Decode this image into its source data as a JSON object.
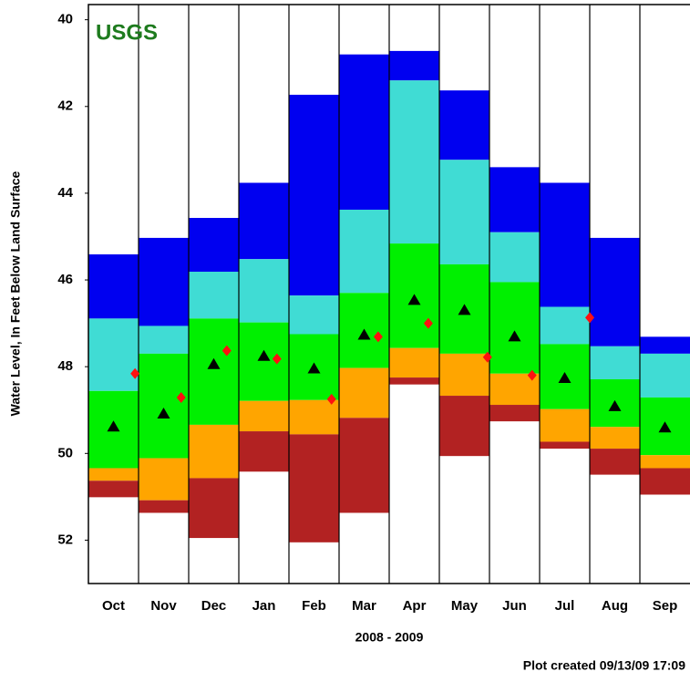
{
  "chart_data": {
    "type": "percentile-bands",
    "logo": "USGS",
    "y_label": "Water Level, In Feet Below Land Surface",
    "x_label": "2008 - 2009",
    "footnote": "Plot created 09/13/09 17:09",
    "categories": [
      "Oct",
      "Nov",
      "Dec",
      "Jan",
      "Feb",
      "Mar",
      "Apr",
      "May",
      "Jun",
      "Jul",
      "Aug",
      "Sep"
    ],
    "ylim": [
      53,
      39.65
    ],
    "yticks": [
      40,
      42,
      44,
      46,
      48,
      50,
      52
    ],
    "band_colors": [
      "#0000f0",
      "#40dcd4",
      "#00f000",
      "#ffa500",
      "#b22222"
    ],
    "levels": [
      [
        45.41,
        45.03,
        44.57,
        43.76,
        41.73,
        40.8,
        40.72,
        41.63,
        43.4,
        43.76,
        45.03,
        47.31
      ],
      [
        46.89,
        47.06,
        45.81,
        45.52,
        46.36,
        44.38,
        41.4,
        43.23,
        44.9,
        46.62,
        47.53,
        47.7
      ],
      [
        48.56,
        47.7,
        46.89,
        46.98,
        47.25,
        46.3,
        45.16,
        45.64,
        46.05,
        47.48,
        48.29,
        48.71
      ],
      [
        50.34,
        50.11,
        49.34,
        48.79,
        48.77,
        48.03,
        47.57,
        47.7,
        48.16,
        48.98,
        49.39,
        50.04
      ],
      [
        50.63,
        51.08,
        50.57,
        49.49,
        49.56,
        49.18,
        48.25,
        48.67,
        48.88,
        49.73,
        49.89,
        50.34
      ],
      [
        51.01,
        51.37,
        51.95,
        50.42,
        52.05,
        51.37,
        48.41,
        50.06,
        49.26,
        49.89,
        50.49,
        50.95
      ]
    ],
    "median": {
      "color": "#000000",
      "values": [
        49.39,
        49.09,
        47.95,
        47.76,
        48.05,
        47.27,
        46.47,
        46.7,
        47.31,
        48.27,
        48.92,
        49.41
      ]
    },
    "current": {
      "color": "#ff1010",
      "x": [
        0.93,
        1.85,
        2.76,
        3.76,
        4.85,
        5.78,
        6.78,
        7.96,
        8.85,
        10.0
      ],
      "values": [
        48.16,
        48.71,
        47.63,
        47.82,
        48.75,
        47.31,
        47.0,
        47.78,
        48.2,
        46.87
      ]
    }
  }
}
